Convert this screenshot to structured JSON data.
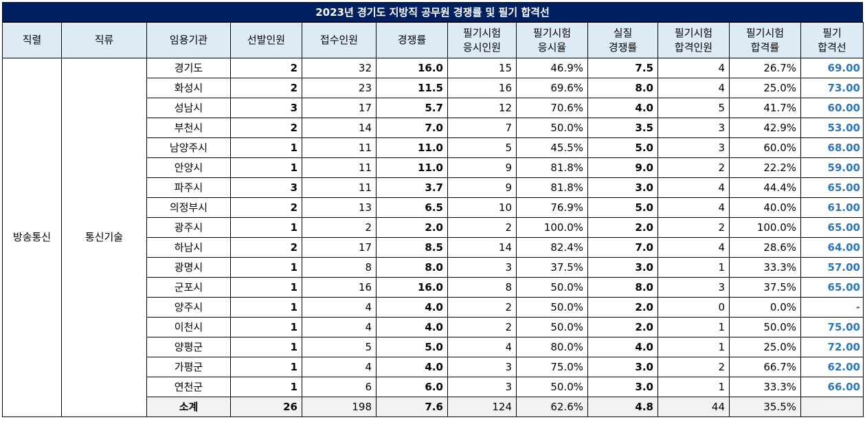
{
  "title": "2023년 경기도 지방직 공무원 경쟁률 및 필기 합격선",
  "headers": [
    {
      "line1": "직렬",
      "line2": ""
    },
    {
      "line1": "직류",
      "line2": ""
    },
    {
      "line1": "임용기관",
      "line2": ""
    },
    {
      "line1": "선발인원",
      "line2": ""
    },
    {
      "line1": "접수인원",
      "line2": ""
    },
    {
      "line1": "경쟁률",
      "line2": ""
    },
    {
      "line1": "필기시험",
      "line2": "응시인원"
    },
    {
      "line1": "필기시험",
      "line2": "응시율"
    },
    {
      "line1": "실질",
      "line2": "경쟁률"
    },
    {
      "line1": "필기시험",
      "line2": "합격인원"
    },
    {
      "line1": "필기시험",
      "line2": "합격률"
    },
    {
      "line1": "필기",
      "line2": "합격선"
    }
  ],
  "series": "방송통신",
  "category": "통신기술",
  "rows": [
    {
      "agency": "경기도",
      "selected": "2",
      "applied": "32",
      "ratio": "16.0",
      "exam_takers": "15",
      "take_rate": "46.9%",
      "real_ratio": "7.5",
      "passed": "4",
      "pass_rate": "26.7%",
      "cutoff": "69.00"
    },
    {
      "agency": "화성시",
      "selected": "2",
      "applied": "23",
      "ratio": "11.5",
      "exam_takers": "16",
      "take_rate": "69.6%",
      "real_ratio": "8.0",
      "passed": "4",
      "pass_rate": "25.0%",
      "cutoff": "73.00"
    },
    {
      "agency": "성남시",
      "selected": "3",
      "applied": "17",
      "ratio": "5.7",
      "exam_takers": "12",
      "take_rate": "70.6%",
      "real_ratio": "4.0",
      "passed": "5",
      "pass_rate": "41.7%",
      "cutoff": "60.00"
    },
    {
      "agency": "부천시",
      "selected": "2",
      "applied": "14",
      "ratio": "7.0",
      "exam_takers": "7",
      "take_rate": "50.0%",
      "real_ratio": "3.5",
      "passed": "3",
      "pass_rate": "42.9%",
      "cutoff": "53.00"
    },
    {
      "agency": "남양주시",
      "selected": "1",
      "applied": "11",
      "ratio": "11.0",
      "exam_takers": "5",
      "take_rate": "45.5%",
      "real_ratio": "5.0",
      "passed": "3",
      "pass_rate": "60.0%",
      "cutoff": "68.00"
    },
    {
      "agency": "안양시",
      "selected": "1",
      "applied": "11",
      "ratio": "11.0",
      "exam_takers": "9",
      "take_rate": "81.8%",
      "real_ratio": "9.0",
      "passed": "2",
      "pass_rate": "22.2%",
      "cutoff": "59.00"
    },
    {
      "agency": "파주시",
      "selected": "3",
      "applied": "11",
      "ratio": "3.7",
      "exam_takers": "9",
      "take_rate": "81.8%",
      "real_ratio": "3.0",
      "passed": "4",
      "pass_rate": "44.4%",
      "cutoff": "65.00"
    },
    {
      "agency": "의정부시",
      "selected": "2",
      "applied": "13",
      "ratio": "6.5",
      "exam_takers": "10",
      "take_rate": "76.9%",
      "real_ratio": "5.0",
      "passed": "4",
      "pass_rate": "40.0%",
      "cutoff": "61.00"
    },
    {
      "agency": "광주시",
      "selected": "1",
      "applied": "2",
      "ratio": "2.0",
      "exam_takers": "2",
      "take_rate": "100.0%",
      "real_ratio": "2.0",
      "passed": "2",
      "pass_rate": "100.0%",
      "cutoff": "65.00"
    },
    {
      "agency": "하남시",
      "selected": "2",
      "applied": "17",
      "ratio": "8.5",
      "exam_takers": "14",
      "take_rate": "82.4%",
      "real_ratio": "7.0",
      "passed": "4",
      "pass_rate": "28.6%",
      "cutoff": "64.00"
    },
    {
      "agency": "광명시",
      "selected": "1",
      "applied": "8",
      "ratio": "8.0",
      "exam_takers": "3",
      "take_rate": "37.5%",
      "real_ratio": "3.0",
      "passed": "1",
      "pass_rate": "33.3%",
      "cutoff": "57.00"
    },
    {
      "agency": "군포시",
      "selected": "1",
      "applied": "16",
      "ratio": "16.0",
      "exam_takers": "8",
      "take_rate": "50.0%",
      "real_ratio": "8.0",
      "passed": "3",
      "pass_rate": "37.5%",
      "cutoff": "65.00"
    },
    {
      "agency": "양주시",
      "selected": "1",
      "applied": "4",
      "ratio": "4.0",
      "exam_takers": "2",
      "take_rate": "50.0%",
      "real_ratio": "2.0",
      "passed": "0",
      "pass_rate": "0.0%",
      "cutoff": "-"
    },
    {
      "agency": "이천시",
      "selected": "1",
      "applied": "4",
      "ratio": "4.0",
      "exam_takers": "2",
      "take_rate": "50.0%",
      "real_ratio": "2.0",
      "passed": "1",
      "pass_rate": "50.0%",
      "cutoff": "75.00"
    },
    {
      "agency": "양평군",
      "selected": "1",
      "applied": "5",
      "ratio": "5.0",
      "exam_takers": "4",
      "take_rate": "80.0%",
      "real_ratio": "4.0",
      "passed": "1",
      "pass_rate": "25.0%",
      "cutoff": "72.00"
    },
    {
      "agency": "가평군",
      "selected": "1",
      "applied": "4",
      "ratio": "4.0",
      "exam_takers": "3",
      "take_rate": "75.0%",
      "real_ratio": "3.0",
      "passed": "2",
      "pass_rate": "66.7%",
      "cutoff": "62.00"
    },
    {
      "agency": "연천군",
      "selected": "1",
      "applied": "6",
      "ratio": "6.0",
      "exam_takers": "3",
      "take_rate": "50.0%",
      "real_ratio": "3.0",
      "passed": "1",
      "pass_rate": "33.3%",
      "cutoff": "66.00"
    }
  ],
  "subtotal": {
    "agency": "소계",
    "selected": "26",
    "applied": "198",
    "ratio": "7.6",
    "exam_takers": "124",
    "take_rate": "62.6%",
    "real_ratio": "4.8",
    "passed": "44",
    "pass_rate": "35.5%",
    "cutoff": ""
  },
  "colors": {
    "title_bg": "#002060",
    "header_bg": "#DDEBF7",
    "cutoff_text": "#2E75B6",
    "subtotal_bg": "#F2F2F2"
  }
}
